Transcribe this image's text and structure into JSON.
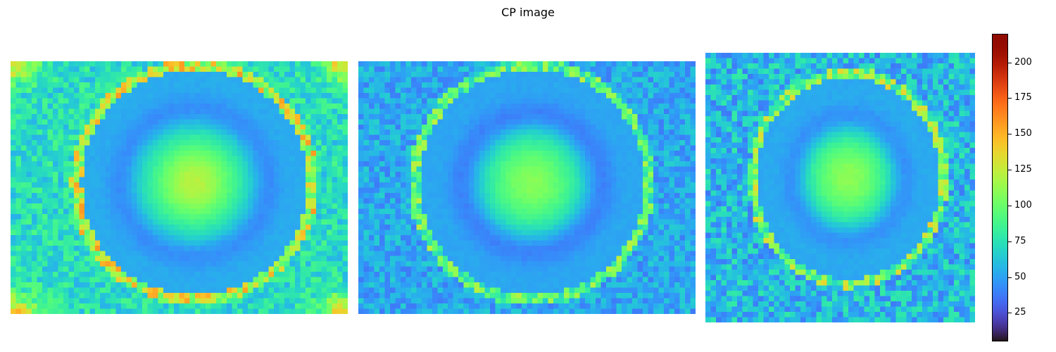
{
  "chart_data": {
    "type": "heatmap",
    "title": "CP image",
    "colormap": "turbo",
    "colorbar": {
      "vmin": 5,
      "vmax": 220,
      "ticks": [
        25,
        50,
        75,
        100,
        125,
        150,
        175,
        200
      ]
    },
    "axes_visible": false,
    "panels": [
      {
        "name": "",
        "grid_cols": 64,
        "grid_rows": 48,
        "background_level": 72,
        "background_noise": 18,
        "disk_center": [
          0.545,
          0.48
        ],
        "disk_radius": [
          0.345,
          0.46
        ],
        "disk_level": 52,
        "center_peak": 122,
        "center_width": 0.1,
        "ring_dip": 15,
        "ring_radius": 0.62,
        "ring_thickness": 0.09,
        "rim_level": 125,
        "rim_noise": 35,
        "hot_corners": true,
        "seed": 11
      },
      {
        "name": "",
        "grid_cols": 64,
        "grid_rows": 48,
        "background_level": 52,
        "background_noise": 15,
        "disk_center": [
          0.515,
          0.48
        ],
        "disk_radius": [
          0.345,
          0.46
        ],
        "disk_level": 50,
        "center_peak": 108,
        "center_width": 0.11,
        "ring_dip": 20,
        "ring_radius": 0.58,
        "ring_thickness": 0.1,
        "rim_level": 95,
        "rim_noise": 30,
        "hot_corners": false,
        "seed": 23
      },
      {
        "name": "",
        "grid_cols": 51,
        "grid_rows": 51,
        "background_level": 58,
        "background_noise": 22,
        "disk_center": [
          0.53,
          0.465
        ],
        "disk_radius": [
          0.35,
          0.385
        ],
        "disk_level": 50,
        "center_peak": 110,
        "center_width": 0.12,
        "ring_dip": 18,
        "ring_radius": 0.58,
        "ring_thickness": 0.1,
        "rim_level": 105,
        "rim_noise": 35,
        "hot_corners": false,
        "seed": 37
      }
    ]
  }
}
